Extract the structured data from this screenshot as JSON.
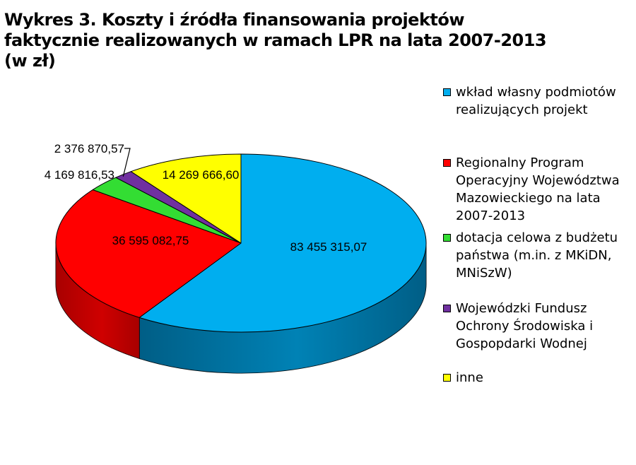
{
  "chart_data": {
    "type": "pie",
    "title_lines": [
      "Wykres 3. Koszty i źródła finansowania projektów",
      "faktycznie realizowanych w ramach LPR na lata 2007-2013",
      "(w zł)"
    ],
    "slices": [
      {
        "key": "wklad",
        "value": 83455315.07,
        "label": "83 455 315,07",
        "color": "#00AEEF",
        "side_color": "#005E86",
        "legend_lines": [
          "wkład własny podmiotów",
          "realizujących projekt"
        ]
      },
      {
        "key": "rpo",
        "value": 36595082.75,
        "label": "36 595 082,75",
        "color": "#FF0000",
        "side_color": "#A80000",
        "legend_lines": [
          "Regionalny Program",
          "Operacyjny Województwa",
          "Mazowieckiego na lata",
          "2007-2013"
        ]
      },
      {
        "key": "dotacja",
        "value": 4169816.53,
        "label": "4 169 816,53",
        "color": "#33DD33",
        "side_color": "#1E8A1E",
        "legend_lines": [
          "dotacja celowa z budżetu",
          "państwa (m.in. z MKiDN,",
          "MNiSzW)"
        ]
      },
      {
        "key": "wfosigw",
        "value": 2376870.57,
        "label": "2 376 870,57",
        "color": "#7030A0",
        "side_color": "#3F1A5C",
        "legend_lines": [
          "Wojewódzki Fundusz",
          "Ochrony Środowiska i",
          "Gospopdarki Wodnej"
        ]
      },
      {
        "key": "inne",
        "value": 14269666.6,
        "label": "14 269 666,60",
        "color": "#FFFF00",
        "side_color": "#9E9E00",
        "legend_lines": [
          "inne"
        ]
      }
    ],
    "legend_position": "right"
  }
}
